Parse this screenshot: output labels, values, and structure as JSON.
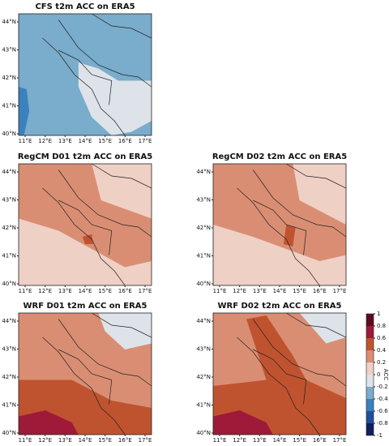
{
  "panels": [
    {
      "title": "CFS t2m ACC on ERA5"
    },
    {
      "title": "RegCM D01 t2m ACC on ERA5"
    },
    {
      "title": "RegCM D02 t2m ACC on ERA5"
    },
    {
      "title": "WRF D01 t2m ACC on ERA5"
    },
    {
      "title": "WRF D02 t2m ACC on ERA5"
    }
  ],
  "lon_labels": [
    "11°E",
    "12°E",
    "13°E",
    "14°E",
    "15°E",
    "16°E",
    "17°E"
  ],
  "lat_labels": [
    "44°N",
    "43°N",
    "42°N",
    "41°N",
    "40°N"
  ],
  "colorbar": {
    "label": "ACC",
    "ticks": [
      1,
      0.8,
      0.6,
      0.4,
      0.2,
      0,
      -0.2,
      -0.4,
      -0.6,
      -0.8,
      -1
    ],
    "colors": [
      "#5e0a1f",
      "#9e1a38",
      "#c0532f",
      "#d98e74",
      "#efd0c5",
      "#dde3e9",
      "#7aaccb",
      "#3a82bd",
      "#1f4f9e",
      "#0f2060"
    ]
  }
}
